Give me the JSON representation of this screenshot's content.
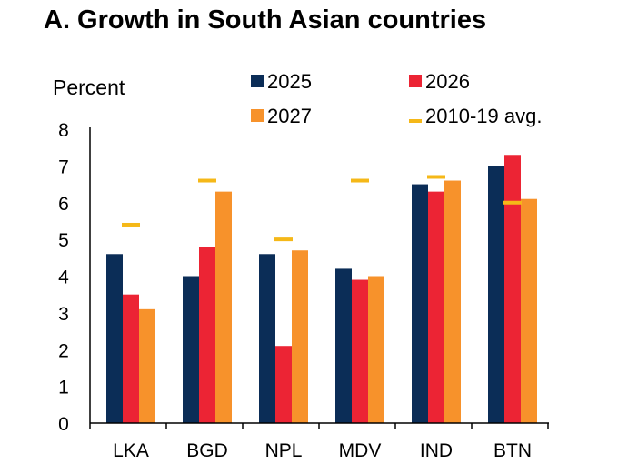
{
  "chart_data": {
    "type": "bar",
    "title": "A. Growth in South Asian countries",
    "ylabel": "Percent",
    "xlabel": "",
    "ylim": [
      0,
      8
    ],
    "yticks": [
      0,
      1,
      2,
      3,
      4,
      5,
      6,
      7,
      8
    ],
    "categories": [
      "LKA",
      "BGD",
      "NPL",
      "MDV",
      "IND",
      "BTN"
    ],
    "series": [
      {
        "name": "2025",
        "color": "#0b2d57",
        "values": [
          4.6,
          4.0,
          4.6,
          4.2,
          6.5,
          7.0
        ]
      },
      {
        "name": "2026",
        "color": "#ec2434",
        "values": [
          3.5,
          4.8,
          2.1,
          3.9,
          6.3,
          7.3
        ]
      },
      {
        "name": "2027",
        "color": "#f7922b",
        "values": [
          3.1,
          6.3,
          4.7,
          4.0,
          6.6,
          6.1
        ]
      }
    ],
    "reference": {
      "name": "2010-19 avg.",
      "color": "#f5b818",
      "values": [
        5.4,
        6.6,
        5.0,
        6.6,
        6.7,
        6.0
      ]
    },
    "grid": false,
    "legend_position": "top"
  }
}
